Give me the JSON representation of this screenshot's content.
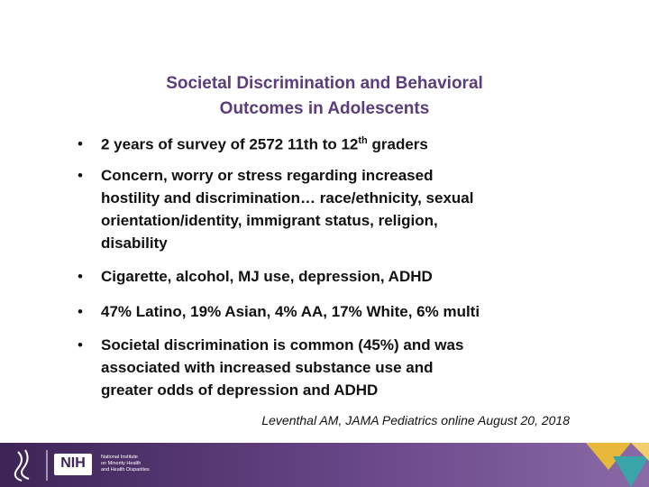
{
  "header": {
    "title_lines": [
      "Societal Discrimination and Behavioral",
      "Outcomes in Adolescents"
    ]
  },
  "bullets": [
    {
      "lines": [
        [
          "2 years of survey of 2572 11th to 12",
          "th",
          " graders"
        ]
      ]
    },
    {
      "lines": [
        [
          "Concern, worry or stress regarding increased"
        ],
        [
          "hostility and discrimination… race/ethnicity, sexual"
        ],
        [
          "orientation/identity, immigrant status, religion,"
        ],
        [
          "disability"
        ]
      ]
    },
    {
      "lines": [
        [
          "Cigarette, alcohol, MJ use, depression, ADHD"
        ]
      ]
    },
    {
      "lines": [
        [
          "47% Latino, 19% Asian, 4% AA, 17% White, 6% multi"
        ]
      ]
    },
    {
      "lines": [
        [
          "Societal discrimination is common (45%) and was"
        ],
        [
          "associated with increased substance use and"
        ],
        [
          "greater odds of depression and ADHD"
        ]
      ]
    }
  ],
  "citation": "Leventhal AM, JAMA Pediatrics online August 20, 2018",
  "footer": {
    "nih": "NIH",
    "institute_lines": [
      "National Institute",
      "on Minority Health",
      "and Health Disparities"
    ]
  }
}
